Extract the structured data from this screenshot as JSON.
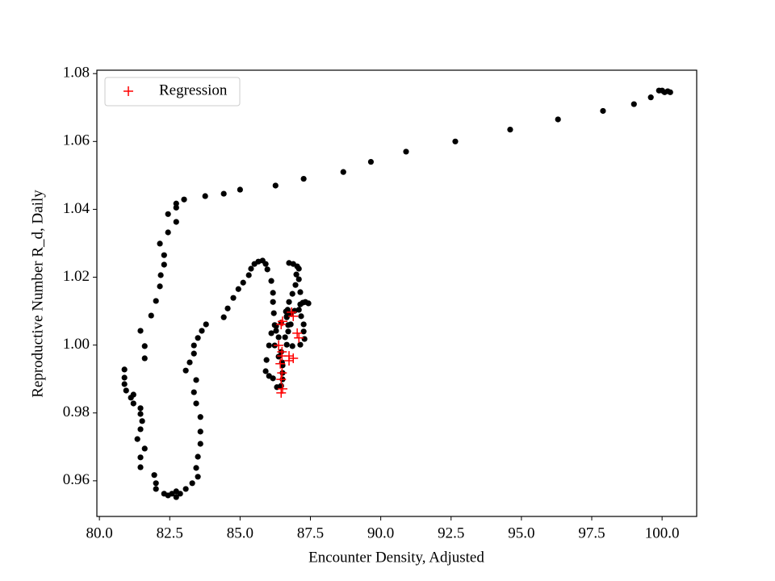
{
  "chart_data": {
    "type": "scatter",
    "x_label": "Encounter Density, Adjusted",
    "y_label": "Reproductive Number R_d, Daily",
    "xlim": [
      79.91,
      101.23
    ],
    "ylim": [
      0.9495,
      1.081
    ],
    "xticks": [
      {
        "value": 80,
        "label": "80.0"
      },
      82.5,
      {
        "value": 85,
        "label": "85.0"
      },
      87.5,
      {
        "value": 90,
        "label": "90.0"
      },
      92.5,
      {
        "value": 95,
        "label": "95.0"
      },
      97.5,
      {
        "value": 100,
        "label": "100.0"
      }
    ],
    "yticks": [
      0.96,
      0.98,
      {
        "value": 1,
        "label": "1.00"
      },
      1.02,
      1.04,
      1.06,
      1.08
    ],
    "legend": "upper left",
    "series": [
      {
        "color": "#000000",
        "marker": "o",
        "x": [
          100.0,
          100.09,
          100.2,
          100.29,
          99.89,
          99.6,
          99.0,
          97.9,
          96.3,
          94.6,
          92.65,
          90.9,
          89.65,
          88.67,
          87.26,
          86.26,
          85.0,
          84.42,
          83.76,
          83.01,
          82.73,
          82.73,
          82.44,
          82.73,
          82.44,
          82.15,
          82.3,
          82.3,
          82.18,
          82.15,
          82.01,
          81.84,
          81.46,
          81.61,
          81.61,
          80.89,
          80.89,
          80.89,
          80.95,
          81.21,
          81.12,
          81.21,
          81.46,
          81.46,
          81.52,
          81.46,
          81.35,
          81.61,
          81.46,
          81.46,
          81.95,
          82.01,
          82.01,
          82.3,
          82.44,
          82.58,
          82.73,
          82.87,
          82.73,
          83.07,
          83.3,
          83.5,
          83.44,
          83.5,
          83.59,
          83.59,
          83.59,
          83.44,
          83.36,
          83.44,
          83.07,
          83.21,
          83.36,
          83.36,
          83.5,
          83.64,
          83.79,
          84.42,
          84.56,
          84.76,
          84.94,
          85.11,
          85.31,
          85.39,
          85.51,
          85.65,
          85.8,
          85.91,
          85.97,
          86.11,
          86.17,
          86.17,
          86.2,
          86.23,
          86.11,
          86.03,
          85.94,
          85.91,
          86.03,
          86.17,
          86.31,
          86.46,
          86.51,
          86.51,
          86.51,
          86.37,
          86.23,
          86.28,
          86.46,
          86.66,
          86.69,
          86.74,
          86.86,
          86.97,
          87.0,
          87.03,
          86.89,
          86.74,
          87.09,
          87.09,
          87.14,
          87.23,
          87.43,
          87.32,
          87.14,
          87.09,
          87.17,
          87.26,
          87.26,
          87.29,
          87.14,
          86.86,
          86.66,
          86.71,
          86.8,
          86.8,
          86.94,
          86.66,
          86.71,
          86.6,
          86.46,
          86.49,
          86.37,
          86.28,
          86.63
        ],
        "values": [
          1.075,
          1.0745,
          1.0748,
          1.0745,
          1.075,
          1.073,
          1.071,
          1.069,
          1.0665,
          1.0635,
          1.06,
          1.057,
          1.054,
          1.051,
          1.049,
          1.047,
          1.0458,
          1.0446,
          1.0439,
          1.0429,
          1.0417,
          1.0405,
          1.0386,
          1.0363,
          1.0332,
          1.0299,
          1.0265,
          1.0237,
          1.0206,
          1.0173,
          1.013,
          1.0087,
          1.0042,
          0.9997,
          0.9961,
          0.9928,
          0.9904,
          0.9885,
          0.9866,
          0.9854,
          0.9845,
          0.9828,
          0.9814,
          0.9797,
          0.9776,
          0.9752,
          0.9723,
          0.9695,
          0.9669,
          0.964,
          0.9617,
          0.9593,
          0.9576,
          0.9562,
          0.9557,
          0.9562,
          0.9569,
          0.9562,
          0.9552,
          0.9576,
          0.9593,
          0.9612,
          0.9638,
          0.9671,
          0.9709,
          0.9745,
          0.9788,
          0.9828,
          0.9861,
          0.9897,
          0.9925,
          0.9949,
          0.9975,
          0.9999,
          1.0021,
          1.0042,
          1.0061,
          1.0082,
          1.0108,
          1.0139,
          1.0165,
          1.0184,
          1.0206,
          1.0225,
          1.0239,
          1.0246,
          1.0249,
          1.0239,
          1.0223,
          1.0189,
          1.0154,
          1.0127,
          1.0094,
          1.0059,
          1.0035,
          0.9999,
          0.9956,
          0.9923,
          0.9909,
          0.9902,
          0.9876,
          0.988,
          0.9899,
          0.9918,
          0.994,
          0.9966,
          0.9999,
          1.0042,
          1.0066,
          1.0082,
          1.0104,
          1.0127,
          1.0151,
          1.0177,
          1.0208,
          1.0232,
          1.0239,
          1.0242,
          1.0225,
          1.0194,
          1.0156,
          1.0125,
          1.0123,
          1.0127,
          1.012,
          1.0104,
          1.0085,
          1.0061,
          1.004,
          1.0018,
          1.0001,
          0.9997,
          1.0001,
          1.004,
          1.0061,
          1.0092,
          1.0101,
          1.0085,
          1.0059,
          1.0023,
          0.998,
          0.9949,
          1.0023,
          1.0056,
          1.0099
        ]
      },
      {
        "name": "Regression",
        "color": "#ff0000",
        "marker": "+",
        "x": [
          86.83,
          86.89,
          86.51,
          86.46,
          86.37,
          86.49,
          86.74,
          86.89,
          86.74,
          86.49,
          86.43,
          86.49,
          86.46,
          86.51,
          86.46,
          87.03,
          87.09
        ],
        "values": [
          1.0097,
          1.0085,
          1.007,
          1.0061,
          0.9999,
          0.998,
          0.9968,
          0.9961,
          0.9954,
          0.9968,
          0.9945,
          0.9918,
          0.9899,
          0.9871,
          0.9859,
          1.0035,
          1.0021
        ]
      }
    ]
  }
}
